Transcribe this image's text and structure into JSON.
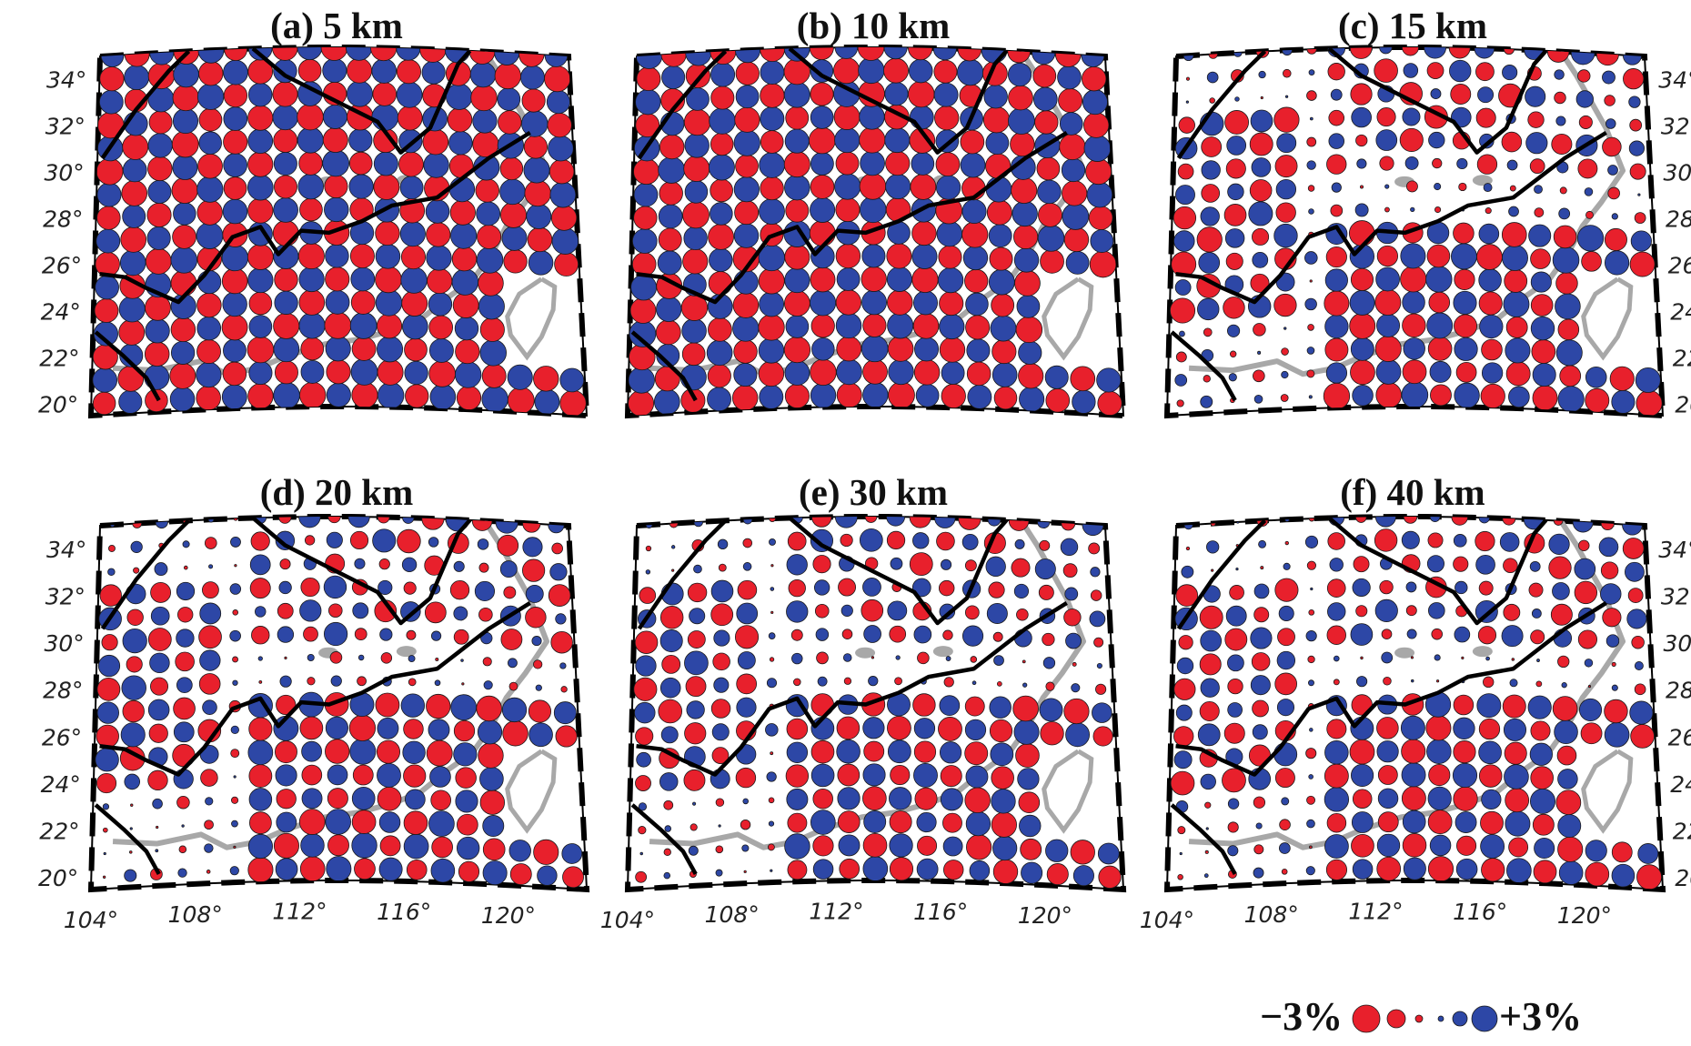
{
  "chart_data": {
    "type": "scatter",
    "colors": {
      "negative": "#e8202c",
      "positive": "#2d47a6",
      "fault": "#000000",
      "coast": "#a8a8a8"
    },
    "x_ticks": [
      "104°",
      "108°",
      "112°",
      "116°",
      "120°"
    ],
    "y_ticks": [
      "34°",
      "32°",
      "30°",
      "28°",
      "26°",
      "24°",
      "22°",
      "20°"
    ],
    "x_range": [
      104,
      123
    ],
    "y_range": [
      19.5,
      35
    ],
    "grid_spacing_deg": 1,
    "panels": [
      {
        "title": "(a) 5 km",
        "pattern": "checkerboard",
        "value_percent": 3
      },
      {
        "title": "(b) 10 km",
        "pattern": "checkerboard",
        "value_percent": 3
      },
      {
        "title": "(c) 15 km",
        "pattern": "recovered",
        "value_percent": 3
      },
      {
        "title": "(d) 20 km",
        "pattern": "recovered",
        "value_percent": 3
      },
      {
        "title": "(e) 30 km",
        "pattern": "recovered",
        "value_percent": 3
      },
      {
        "title": "(f) 40 km",
        "pattern": "recovered",
        "value_percent": 3
      }
    ],
    "legend": {
      "neg_label": "−3%",
      "pos_label": "+3%",
      "placement": "bottom-right"
    }
  }
}
